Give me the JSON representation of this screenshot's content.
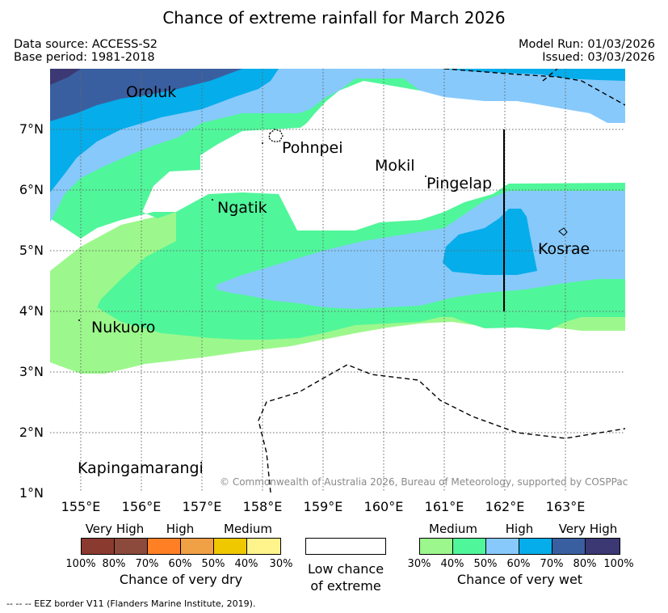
{
  "title": "Chance of extreme rainfall for March 2026",
  "meta": {
    "data_source": "Data source: ACCESS-S2",
    "base_period": "Base period: 1981-2018",
    "model_run": "Model Run: 01/03/2026",
    "issued": "Issued: 03/03/2026"
  },
  "axes": {
    "lat_labels": [
      "7°N",
      "6°N",
      "5°N",
      "4°N",
      "3°N",
      "2°N",
      "1°N"
    ],
    "lon_labels": [
      "155°E",
      "156°E",
      "157°E",
      "158°E",
      "159°E",
      "160°E",
      "161°E",
      "162°E",
      "163°E"
    ]
  },
  "places": {
    "oroluk": "Oroluk",
    "pohnpei": "Pohnpei",
    "mokil": "Mokil",
    "pingelap": "Pingelap",
    "ngatik": "Ngatik",
    "kosrae": "Kosrae",
    "nukuoro": "Nukuoro",
    "kapingamarangi": "Kapingamarangi"
  },
  "copyright": "© Commonwealth of Australia 2026, Bureau of Meteorology, supported by COSPPac",
  "legend": {
    "dry": {
      "title": "Chance of very dry",
      "categories": [
        "Very High",
        "High",
        "Medium"
      ],
      "percents": [
        "100%",
        "80%",
        "70%",
        "60%",
        "50%",
        "40%",
        "30%"
      ],
      "colors": [
        "#8b3a2f",
        "#8b4a3b",
        "#ff8024",
        "#f0a045",
        "#f0c800",
        "#fff48c"
      ]
    },
    "low": {
      "line1": "Low chance",
      "line2": "of extreme"
    },
    "wet": {
      "title": "Chance of very wet",
      "categories": [
        "Medium",
        "High",
        "Very High"
      ],
      "percents": [
        "30%",
        "40%",
        "50%",
        "60%",
        "70%",
        "80%",
        "100%"
      ],
      "colors": [
        "#9cf88c",
        "#50f69a",
        "#87c9fb",
        "#05adea",
        "#3a5fa0",
        "#3b3873"
      ]
    }
  },
  "eez_note": "--  --  -- EEZ border V11 (Flanders Marine Institute, 2019)."
}
